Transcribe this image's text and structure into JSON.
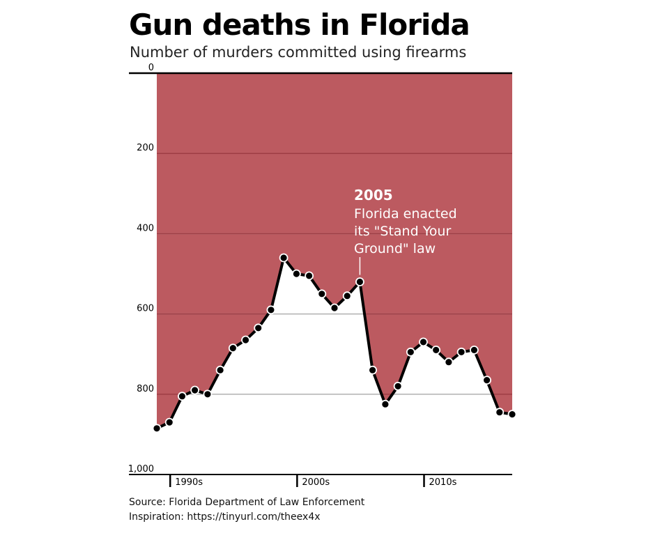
{
  "title": "Gun deaths in Florida",
  "subtitle": "Number of murders committed using firearms",
  "source_lines": [
    "Source: Florida Department of Law Enforcement",
    "Inspiration: https://tinyurl.com/theex4x"
  ],
  "colors": {
    "fill": "#bc5a60",
    "gridline_on_fill": "#9e3d44",
    "gridline_on_white": "#b0b0b0",
    "line": "#000000",
    "annotation": "#ffffff"
  },
  "chart_data": {
    "type": "area",
    "y_axis_inverted": true,
    "ylim": [
      0,
      1000
    ],
    "y_ticks": [
      0,
      200,
      400,
      600,
      800,
      1000
    ],
    "y_tick_labels": [
      "0",
      "200",
      "400",
      "600",
      "800",
      "1,000"
    ],
    "xlim": [
      1989,
      2017
    ],
    "x_ticks": [
      1990,
      2000,
      2010
    ],
    "x_tick_labels": [
      "1990s",
      "2000s",
      "2010s"
    ],
    "grid": true,
    "x": [
      1989,
      1990,
      1991,
      1992,
      1993,
      1994,
      1995,
      1996,
      1997,
      1998,
      1999,
      2000,
      2001,
      2002,
      2003,
      2004,
      2005,
      2006,
      2007,
      2008,
      2009,
      2010,
      2011,
      2012,
      2013,
      2014,
      2015,
      2016,
      2017
    ],
    "values": [
      885,
      870,
      805,
      790,
      800,
      740,
      685,
      665,
      635,
      590,
      460,
      500,
      505,
      550,
      585,
      555,
      520,
      740,
      825,
      780,
      695,
      670,
      690,
      720,
      695,
      690,
      765,
      845,
      850
    ],
    "annotation": {
      "x": 2005,
      "year": "2005",
      "lines": [
        "Florida enacted",
        "its \"Stand Your",
        "Ground\" law"
      ]
    }
  }
}
